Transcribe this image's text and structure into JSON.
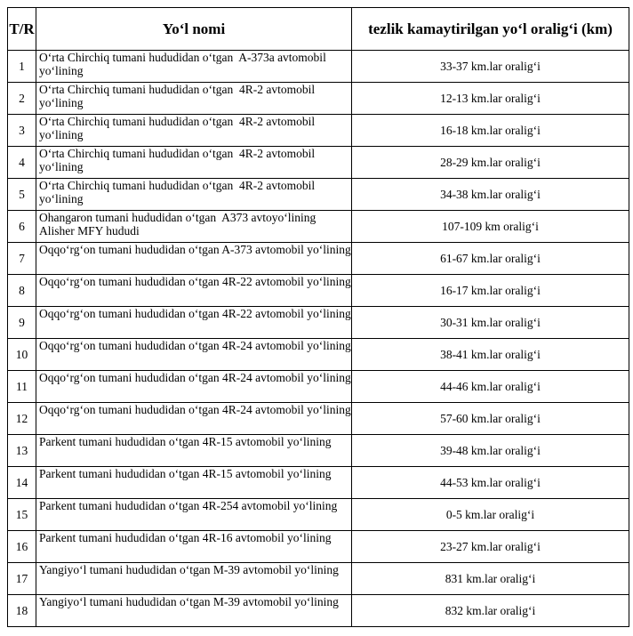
{
  "headers": {
    "num": "T/R",
    "name": "Yo‘l nomi",
    "range": "tezlik kamaytirilgan yo‘l oralig‘i (km)"
  },
  "rows": [
    {
      "num": "1",
      "name": "O‘rta Chirchiq tumani hududidan o‘tgan  A-373a avtomobil yo‘lining",
      "range": "33-37 km.lar oralig‘i"
    },
    {
      "num": "2",
      "name": "O‘rta Chirchiq tumani hududidan o‘tgan  4R-2 avtomobil yo‘lining",
      "range": "12-13 km.lar oralig‘i"
    },
    {
      "num": "3",
      "name": "O‘rta Chirchiq tumani hududidan o‘tgan  4R-2 avtomobil yo‘lining",
      "range": "16-18 km.lar oralig‘i"
    },
    {
      "num": "4",
      "name": "O‘rta Chirchiq tumani hududidan o‘tgan  4R-2 avtomobil yo‘lining",
      "range": "28-29 km.lar oralig‘i"
    },
    {
      "num": "5",
      "name": "O‘rta Chirchiq tumani hududidan o‘tgan  4R-2 avtomobil yo‘lining",
      "range": "34-38 km.lar oralig‘i"
    },
    {
      "num": "6",
      "name": "Ohangaron tumani hududidan o‘tgan  A373 avtoyo‘lining Alisher MFY hududi",
      "range": "107-109 km oralig‘i"
    },
    {
      "num": "7",
      "name": "Oqqo‘rg‘on tumani hududidan o‘tgan A-373 avtomobil yo‘lining",
      "range": "61-67 km.lar oralig‘i"
    },
    {
      "num": "8",
      "name": "Oqqo‘rg‘on tumani hududidan o‘tgan 4R-22 avtomobil yo‘lining",
      "range": "16-17 km.lar oralig‘i"
    },
    {
      "num": "9",
      "name": "Oqqo‘rg‘on tumani hududidan o‘tgan 4R-22 avtomobil yo‘lining",
      "range": "30-31 km.lar oralig‘i"
    },
    {
      "num": "10",
      "name": "Oqqo‘rg‘on tumani hududidan o‘tgan 4R-24 avtomobil yo‘lining",
      "range": "38-41 km.lar oralig‘i"
    },
    {
      "num": "11",
      "name": "Oqqo‘rg‘on tumani hududidan o‘tgan 4R-24 avtomobil yo‘lining",
      "range": "44-46 km.lar oralig‘i"
    },
    {
      "num": "12",
      "name": "Oqqo‘rg‘on tumani hududidan o‘tgan 4R-24 avtomobil yo‘lining",
      "range": "57-60 km.lar oralig‘i"
    },
    {
      "num": "13",
      "name": "Parkent tumani hududidan o‘tgan 4R-15 avtomobil yo‘lining",
      "range": "39-48 km.lar oralig‘i"
    },
    {
      "num": "14",
      "name": "Parkent tumani hududidan o‘tgan 4R-15 avtomobil yo‘lining",
      "range": "44-53 km.lar oralig‘i"
    },
    {
      "num": "15",
      "name": "Parkent tumani hududidan o‘tgan 4R-254 avtomobil yo‘lining",
      "range": "0-5 km.lar oralig‘i"
    },
    {
      "num": "16",
      "name": "Parkent tumani hududidan o‘tgan 4R-16 avtomobil yo‘lining",
      "range": "23-27 km.lar oralig‘i"
    },
    {
      "num": "17",
      "name": "Yangiyo‘l tumani hududidan o‘tgan M-39 avtomobil yo‘lining",
      "range": "831 km.lar oralig‘i"
    },
    {
      "num": "18",
      "name": "Yangiyo‘l tumani hududidan o‘tgan M-39 avtomobil yo‘lining",
      "range": "832 km.lar oralig‘i"
    }
  ]
}
